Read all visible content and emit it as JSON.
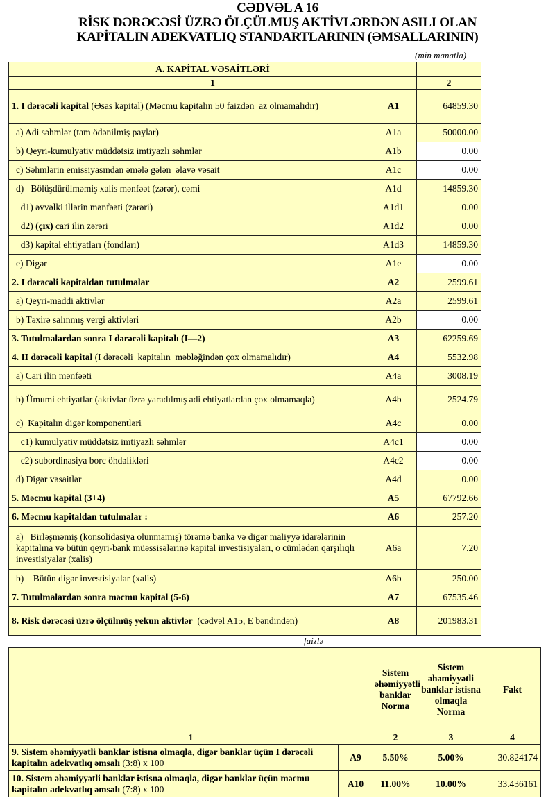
{
  "title": [
    "CƏDVƏL A 16",
    "RİSK DƏRƏCƏSİ ÜZRƏ ÖLÇÜLMUŞ AKTİVLƏRDƏN ASILI OLAN",
    "KAPİTALIN ADEKVATLIQ STANDARTLARININ (ƏMSALLARININ)"
  ],
  "unit1": "(min manatla)",
  "table1": {
    "section": "A. KAPİTAL VƏSAİTLƏRİ",
    "col_nums": [
      "1",
      "2"
    ],
    "rows": [
      {
        "bold": "1. I dərəcəli kapital",
        "rest": " (Əsas kapital) (Məcmu kapitalın 50 faizdən  az olmamalıdır)",
        "code": "A1",
        "value": "64859.30",
        "main": true,
        "white": false
      },
      {
        "pre": "a) Adi səhmlər (tam ödənilmiş paylar)",
        "code": "A1a",
        "value": "50000.00",
        "white": false
      },
      {
        "pre": "b) Qeyri-kumulyativ müddətsiz imtiyazlı səhmlər",
        "code": "A1b",
        "value": "0.00",
        "white": true
      },
      {
        "pre": "c) Səhmlərin emissiyasından əmələ gələn  əlavə vəsait",
        "code": "A1c",
        "value": "0.00",
        "white": true
      },
      {
        "pre": "d)   Bölüşdürülməmiş xalis mənfəət (zərər), cəmi",
        "code": "A1d",
        "value": "14859.30",
        "white": false
      },
      {
        "pre": "  d1) əvvəlki illərin mənfəəti (zərəri)",
        "code": "A1d1",
        "value": "0.00",
        "white": false
      },
      {
        "pre": "  d2) ",
        "bold": "(çıx)",
        "rest": " cari ilin zərəri",
        "code": "A1d2",
        "value": "0.00",
        "white": false
      },
      {
        "pre": "  d3) kapital ehtiyatları (fondları)",
        "code": "A1d3",
        "value": "14859.30",
        "white": false
      },
      {
        "pre": "e) Digər",
        "code": "A1e",
        "value": "0.00",
        "white": true
      },
      {
        "bold": "2. I dərəcəli kapitaldan  tutulmalar",
        "code": "A2",
        "value": "2599.61",
        "main": true,
        "white": false
      },
      {
        "pre": "a) Qeyri-maddi aktivlər",
        "code": "A2a",
        "value": "2599.61",
        "white": false
      },
      {
        "pre": "b) Təxirə salınmış vergi aktivləri",
        "code": "A2b",
        "value": "0.00",
        "white": true
      },
      {
        "bold": "3. Tutulmalardan  sonra I dərəcəli kapitalı (I—2)",
        "code": "A3",
        "value": "62259.69",
        "main": true,
        "white": false
      },
      {
        "bold": "4. II dərəcəli  kapital",
        "rest": " (I dərəcəli  kapitalın  məbləğindən çox olmamalıdır)",
        "code": "A4",
        "value": "5532.98",
        "main": true,
        "white": false
      },
      {
        "pre": "a) Cari ilin mənfəəti",
        "code": "A4a",
        "value": "3008.19",
        "white": false
      },
      {
        "pre": "b) Ümumi ehtiyatlar (aktivlər üzrə yaradılmış adi ehtiyatlardan çox olmamaqla)",
        "code": "A4b",
        "value": "2524.79",
        "white": false
      },
      {
        "pre": "c)  Kapitalın digər komponentləri",
        "code": "A4c",
        "value": "0.00",
        "white": false
      },
      {
        "pre": "  c1) kumulyativ müddətsiz imtiyazlı səhmlər",
        "code": "A4c1",
        "value": "0.00",
        "white": true
      },
      {
        "pre": "  c2) subordinasiya borc öhdəlikləri",
        "code": "A4c2",
        "value": "0.00",
        "white": true
      },
      {
        "pre": "d) Digər vəsaitlər",
        "code": "A4d",
        "value": "0.00",
        "white": false
      },
      {
        "bold": "5. Məcmu kapital (3+4)",
        "code": "A5",
        "value": "67792.66",
        "main": true,
        "white": false
      },
      {
        "bold": "6. Məcmu kapitaldan tutulmalar :",
        "code": "A6",
        "value": "257.20",
        "main": true,
        "white": false
      },
      {
        "pre": "a)   Birləşməmiş (konsolidasiya olunmamış) törəmə banka və digər maliyyə idarələrinin kapitalına və bütün qeyri-bank müəssisələrinə kapital investisiyaları, o cümlədən qarşılıqlı investisiyalar (xalis)",
        "code": "A6a",
        "value": "7.20",
        "white": false
      },
      {
        "pre": "b)    Bütün digər investisiyalar (xalis)",
        "code": "A6b",
        "value": "250.00",
        "white": false
      },
      {
        "bold": "7. Tutulmalardan  sonra məcmu kapital (5-6)",
        "code": "A7",
        "value": "67535.46",
        "main": true,
        "white": false
      },
      {
        "bold": "8. Risk dərəcəsi üzrə ölçülmüş  yekun aktivlər",
        "rest": "  (cədvəl A15, E bəndindən)",
        "code": "A8",
        "value": "201983.31",
        "main": true,
        "white": false
      }
    ]
  },
  "unit2": "faizlə",
  "table2": {
    "headers": [
      "",
      "Sistem əhəmiyyətli banklar Norma",
      "Sistem əhəmiyyətli banklar istisna olmaqla Norma",
      "Fakt"
    ],
    "col_nums": [
      "1",
      "2",
      "3",
      "4"
    ],
    "rows": [
      {
        "bold": "9. Sistem əhəmiyyətli banklar istisna olmaqla, digər banklar üçün I dərəcəli  kapitalın  adekvatlıq əmsalı",
        "rest": " (3:8) x 100",
        "code": "A9",
        "norm_sys": "5.50%",
        "norm_other": "5.00%",
        "fact": "30.824174"
      },
      {
        "bold": "10. Sistem əhəmiyyətli banklar istisna olmaqla, digər banklar üçün məcmu kapitalın  adekvatlıq  əmsalı",
        "rest": " (7:8) x 100",
        "code": "A10",
        "norm_sys": "11.00%",
        "norm_other": "10.00%",
        "fact": "33.436161"
      }
    ]
  }
}
